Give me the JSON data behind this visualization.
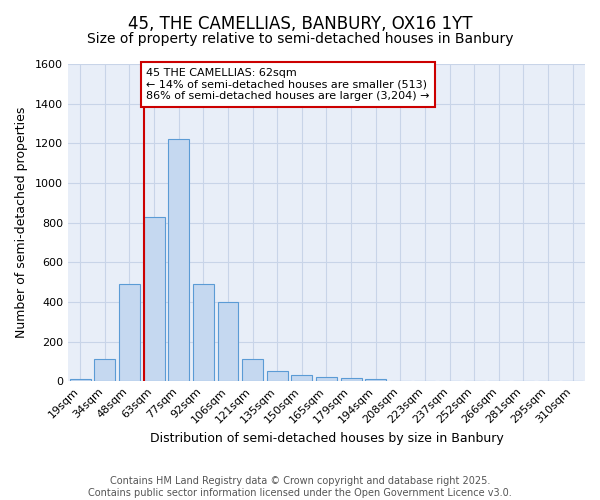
{
  "title_line1": "45, THE CAMELLIAS, BANBURY, OX16 1YT",
  "title_line2": "Size of property relative to semi-detached houses in Banbury",
  "xlabel": "Distribution of semi-detached houses by size in Banbury",
  "ylabel": "Number of semi-detached properties",
  "bar_labels": [
    "19sqm",
    "34sqm",
    "48sqm",
    "63sqm",
    "77sqm",
    "92sqm",
    "106sqm",
    "121sqm",
    "135sqm",
    "150sqm",
    "165sqm",
    "179sqm",
    "194sqm",
    "208sqm",
    "223sqm",
    "237sqm",
    "252sqm",
    "266sqm",
    "281sqm",
    "295sqm",
    "310sqm"
  ],
  "bar_values": [
    10,
    110,
    490,
    830,
    1220,
    490,
    400,
    110,
    50,
    30,
    20,
    15,
    10,
    0,
    0,
    0,
    0,
    0,
    0,
    0,
    0
  ],
  "bar_color": "#c5d8f0",
  "bar_edge_color": "#5b9bd5",
  "pct_smaller": 14,
  "pct_larger": 86,
  "n_smaller": 513,
  "n_larger": 3204,
  "subject_sqm": 62,
  "annotation_box_color": "#ffffff",
  "annotation_box_edge": "#cc0000",
  "vline_color": "#cc0000",
  "ylim": [
    0,
    1600
  ],
  "yticks": [
    0,
    200,
    400,
    600,
    800,
    1000,
    1200,
    1400,
    1600
  ],
  "grid_color": "#c8d4e8",
  "bg_color": "#e8eef8",
  "footer_line1": "Contains HM Land Registry data © Crown copyright and database right 2025.",
  "footer_line2": "Contains public sector information licensed under the Open Government Licence v3.0.",
  "title_fontsize": 12,
  "subtitle_fontsize": 10,
  "axis_label_fontsize": 9,
  "tick_fontsize": 8,
  "annot_fontsize": 8
}
